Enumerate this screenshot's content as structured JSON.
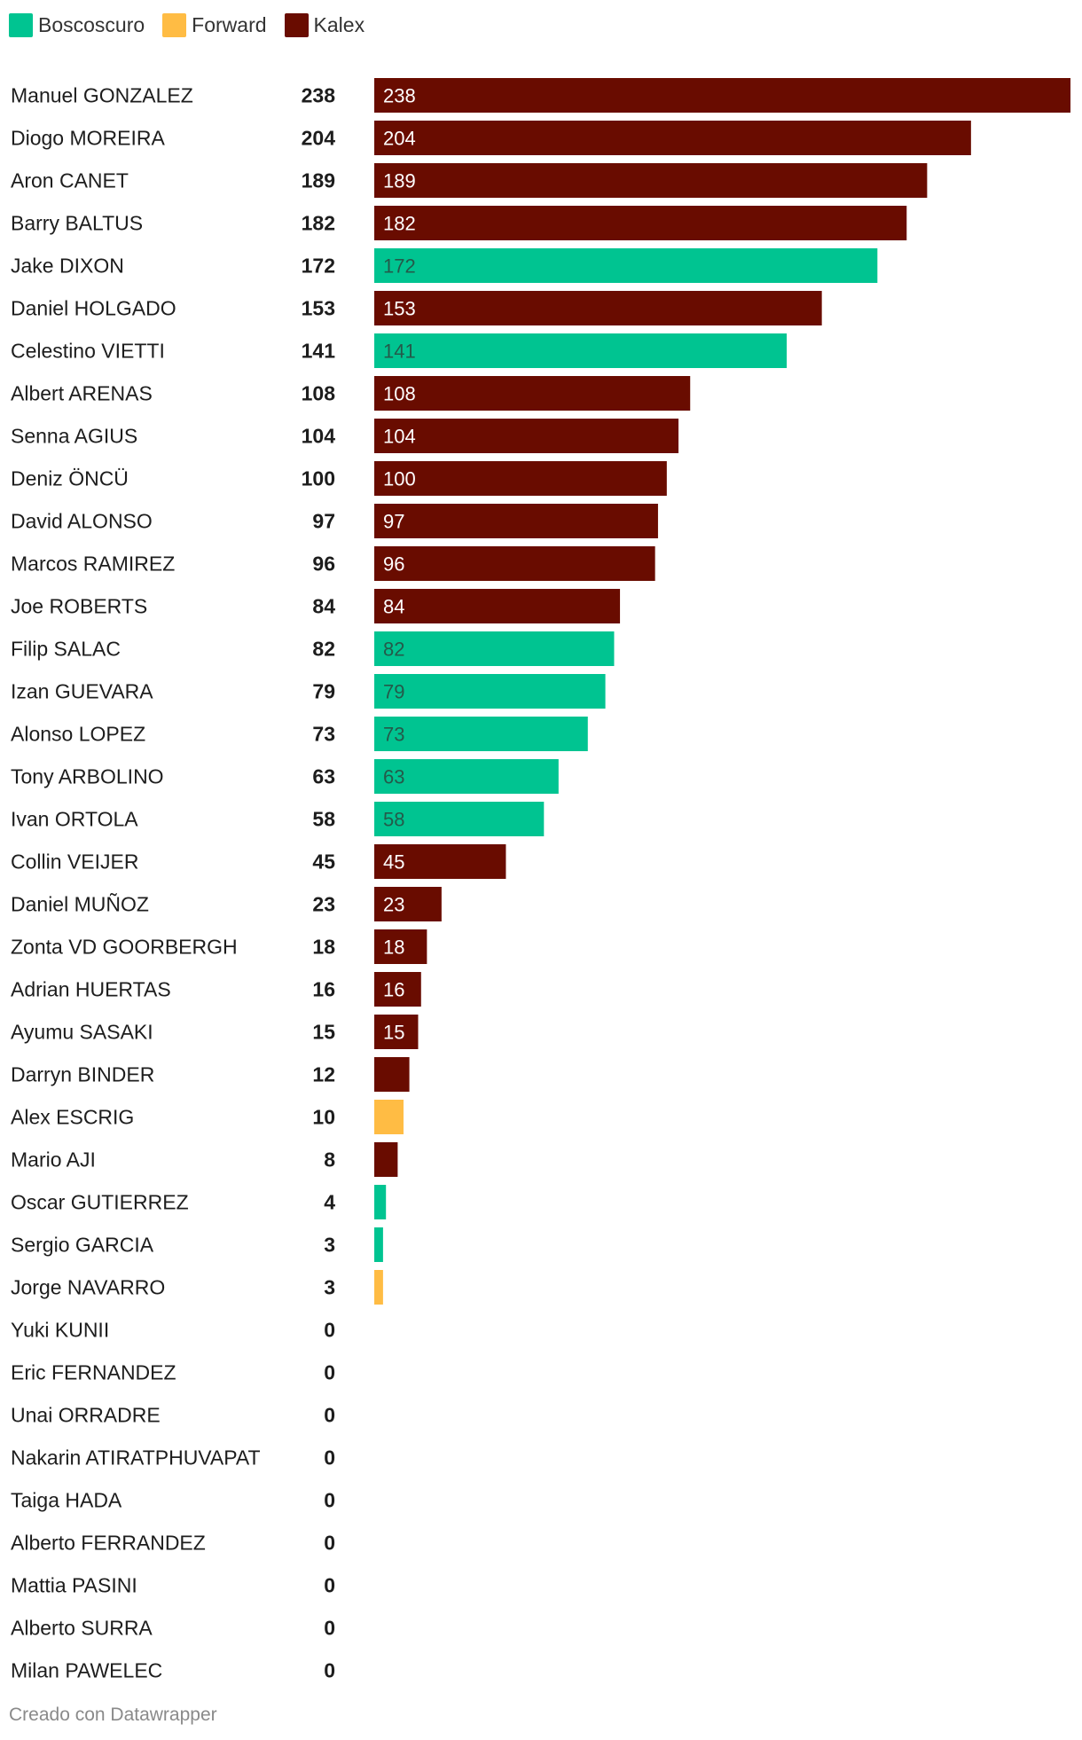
{
  "chart_data": {
    "type": "bar",
    "orientation": "horizontal",
    "legend": [
      {
        "name": "Boscoscuro",
        "color": "#00c491"
      },
      {
        "name": "Forward",
        "color": "#ffbc44"
      },
      {
        "name": "Kalex",
        "color": "#690c00"
      }
    ],
    "xlim": [
      0,
      238
    ],
    "rows": [
      {
        "rider": "Manuel GONZALEZ",
        "value": 238,
        "team": "Kalex",
        "bar_label": "238"
      },
      {
        "rider": "Diogo MOREIRA",
        "value": 204,
        "team": "Kalex",
        "bar_label": "204"
      },
      {
        "rider": "Aron CANET",
        "value": 189,
        "team": "Kalex",
        "bar_label": "189"
      },
      {
        "rider": "Barry BALTUS",
        "value": 182,
        "team": "Kalex",
        "bar_label": "182"
      },
      {
        "rider": "Jake DIXON",
        "value": 172,
        "team": "Boscoscuro",
        "bar_label": "172"
      },
      {
        "rider": "Daniel HOLGADO",
        "value": 153,
        "team": "Kalex",
        "bar_label": "153"
      },
      {
        "rider": "Celestino VIETTI",
        "value": 141,
        "team": "Boscoscuro",
        "bar_label": "141"
      },
      {
        "rider": "Albert ARENAS",
        "value": 108,
        "team": "Kalex",
        "bar_label": "108"
      },
      {
        "rider": "Senna AGIUS",
        "value": 104,
        "team": "Kalex",
        "bar_label": "104"
      },
      {
        "rider": "Deniz ÖNCÜ",
        "value": 100,
        "team": "Kalex",
        "bar_label": "100"
      },
      {
        "rider": "David ALONSO",
        "value": 97,
        "team": "Kalex",
        "bar_label": "97"
      },
      {
        "rider": "Marcos RAMIREZ",
        "value": 96,
        "team": "Kalex",
        "bar_label": "96"
      },
      {
        "rider": "Joe ROBERTS",
        "value": 84,
        "team": "Kalex",
        "bar_label": "84"
      },
      {
        "rider": "Filip SALAC",
        "value": 82,
        "team": "Boscoscuro",
        "bar_label": "82"
      },
      {
        "rider": "Izan GUEVARA",
        "value": 79,
        "team": "Boscoscuro",
        "bar_label": "79"
      },
      {
        "rider": "Alonso LOPEZ",
        "value": 73,
        "team": "Boscoscuro",
        "bar_label": "73"
      },
      {
        "rider": "Tony ARBOLINO",
        "value": 63,
        "team": "Boscoscuro",
        "bar_label": "63"
      },
      {
        "rider": "Ivan ORTOLA",
        "value": 58,
        "team": "Boscoscuro",
        "bar_label": "58"
      },
      {
        "rider": "Collin VEIJER",
        "value": 45,
        "team": "Kalex",
        "bar_label": "45"
      },
      {
        "rider": "Daniel MUÑOZ",
        "value": 23,
        "team": "Kalex",
        "bar_label": "23"
      },
      {
        "rider": "Zonta VD GOORBERGH",
        "value": 18,
        "team": "Kalex",
        "bar_label": "18"
      },
      {
        "rider": "Adrian HUERTAS",
        "value": 16,
        "team": "Kalex",
        "bar_label": "16"
      },
      {
        "rider": "Ayumu SASAKI",
        "value": 15,
        "team": "Kalex",
        "bar_label": "15"
      },
      {
        "rider": "Darryn BINDER",
        "value": 12,
        "team": "Kalex",
        "bar_label": ""
      },
      {
        "rider": "Alex ESCRIG",
        "value": 10,
        "team": "Forward",
        "bar_label": ""
      },
      {
        "rider": "Mario AJI",
        "value": 8,
        "team": "Kalex",
        "bar_label": ""
      },
      {
        "rider": "Oscar GUTIERREZ",
        "value": 4,
        "team": "Boscoscuro",
        "bar_label": ""
      },
      {
        "rider": "Sergio GARCIA",
        "value": 3,
        "team": "Boscoscuro",
        "bar_label": ""
      },
      {
        "rider": "Jorge NAVARRO",
        "value": 3,
        "team": "Forward",
        "bar_label": ""
      },
      {
        "rider": "Yuki KUNII",
        "value": 0,
        "team": "Kalex",
        "bar_label": ""
      },
      {
        "rider": "Eric FERNANDEZ",
        "value": 0,
        "team": "Kalex",
        "bar_label": ""
      },
      {
        "rider": "Unai ORRADRE",
        "value": 0,
        "team": "Kalex",
        "bar_label": ""
      },
      {
        "rider": "Nakarin ATIRATPHUVAPAT",
        "value": 0,
        "team": "Kalex",
        "bar_label": ""
      },
      {
        "rider": "Taiga HADA",
        "value": 0,
        "team": "Kalex",
        "bar_label": ""
      },
      {
        "rider": "Alberto FERRANDEZ",
        "value": 0,
        "team": "Kalex",
        "bar_label": ""
      },
      {
        "rider": "Mattia PASINI",
        "value": 0,
        "team": "Kalex",
        "bar_label": ""
      },
      {
        "rider": "Alberto SURRA",
        "value": 0,
        "team": "Kalex",
        "bar_label": ""
      },
      {
        "rider": "Milan PAWELEC",
        "value": 0,
        "team": "Kalex",
        "bar_label": ""
      }
    ]
  },
  "footer": {
    "credit": "Creado con Datawrapper"
  }
}
